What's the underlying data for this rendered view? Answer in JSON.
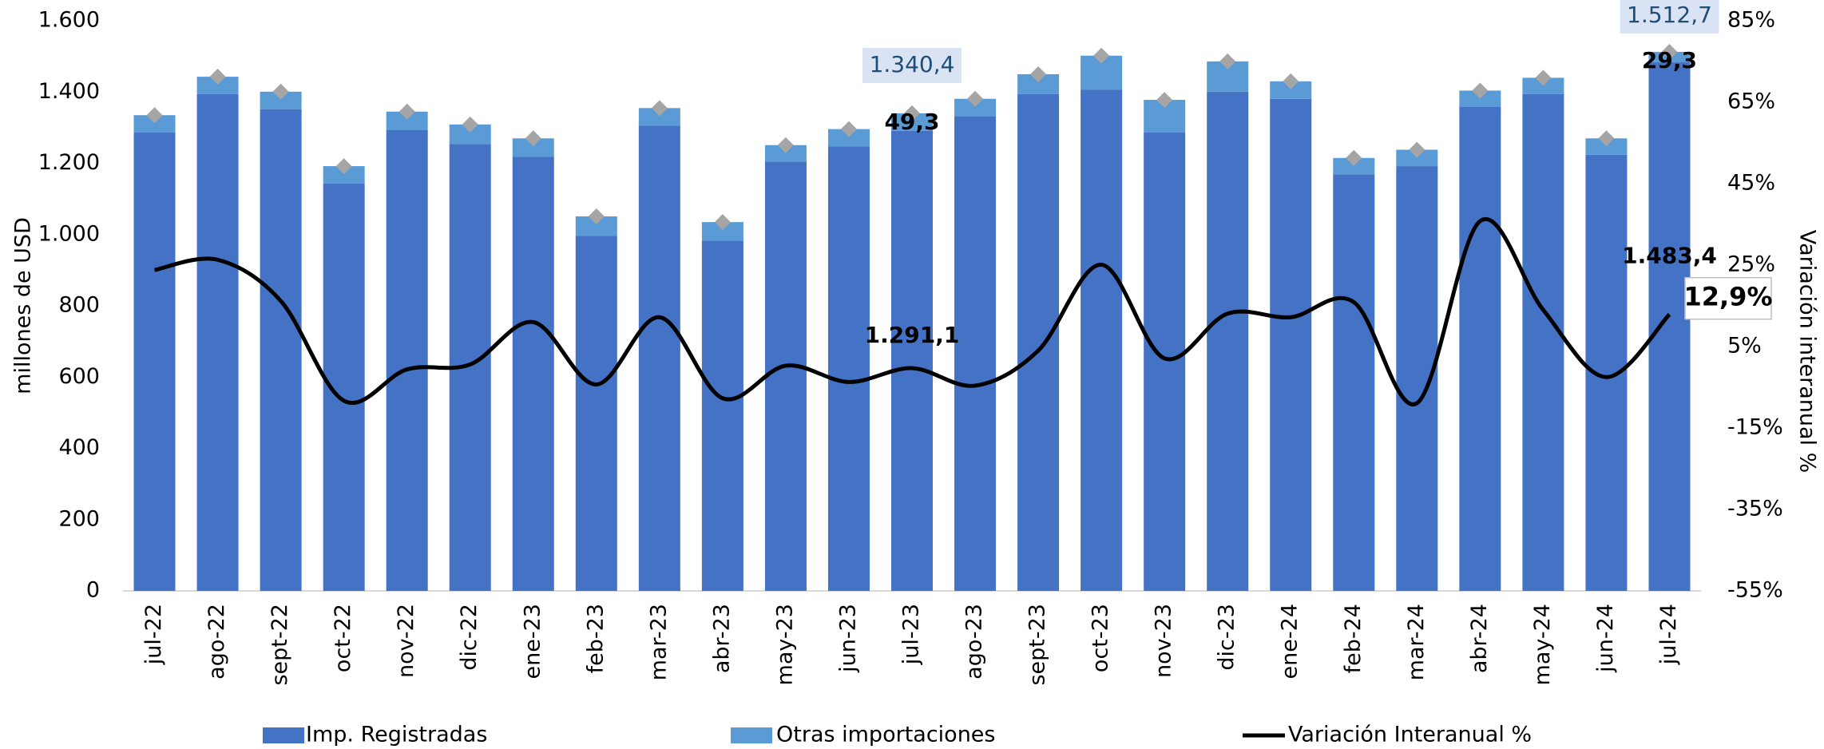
{
  "chart_data": {
    "type": "bar",
    "stacked": true,
    "y_label": "millones de  USD",
    "y2_label": "Variación  interanual %",
    "categories": [
      "jul-22",
      "ago-22",
      "sept-22",
      "oct-22",
      "nov-22",
      "dic-22",
      "ene-23",
      "feb-23",
      "mar-23",
      "abr-23",
      "may-23",
      "jun-23",
      "jul-23",
      "ago-23",
      "sept-23",
      "oct-23",
      "nov-23",
      "dic-23",
      "ene-24",
      "feb-24",
      "mar-24",
      "abr-24",
      "may-24",
      "jun-24",
      "jul-24"
    ],
    "series": [
      {
        "name": "Imp. Registradas",
        "type": "bar",
        "color": "#4472c4",
        "values": [
          1287,
          1394,
          1352,
          1143,
          1293,
          1254,
          1218,
          996,
          1306,
          983,
          1205,
          1247,
          1291.1,
          1332,
          1394,
          1407,
          1287,
          1401,
          1381,
          1169,
          1192,
          1358,
          1394,
          1224,
          1483.4
        ],
        "value_labels": [
          null,
          null,
          null,
          null,
          null,
          null,
          null,
          null,
          null,
          null,
          null,
          null,
          "1.291,1",
          null,
          null,
          null,
          null,
          null,
          null,
          null,
          null,
          null,
          null,
          null,
          "1.483,4"
        ]
      },
      {
        "name": "Otras importaciones",
        "type": "bar",
        "color": "#5b9bd5",
        "values": [
          48,
          49,
          49,
          49,
          52,
          55,
          52,
          55,
          49,
          52,
          46,
          49,
          49.3,
          49,
          56,
          95,
          91,
          85,
          49,
          46,
          46,
          46,
          46,
          46,
          29.3
        ],
        "value_labels": [
          null,
          null,
          null,
          null,
          null,
          null,
          null,
          null,
          null,
          null,
          null,
          null,
          "49,3",
          null,
          null,
          null,
          null,
          null,
          null,
          null,
          null,
          null,
          null,
          null,
          "29,3"
        ]
      },
      {
        "name": "Variación Interanual %",
        "type": "line",
        "axis": "y2",
        "color": "#000000",
        "values": [
          23.8,
          26.3,
          16.2,
          -8.3,
          -0.6,
          0.6,
          11,
          -4.3,
          12.2,
          -7.7,
          0.3,
          -3.7,
          -0.3,
          -4.6,
          4,
          25.1,
          2.1,
          13.1,
          12.2,
          15.9,
          -8.9,
          35.8,
          14,
          -2.5,
          12.9
        ],
        "value_labels": [
          null,
          null,
          null,
          null,
          null,
          null,
          null,
          null,
          null,
          null,
          null,
          null,
          null,
          null,
          null,
          null,
          null,
          null,
          null,
          null,
          null,
          null,
          null,
          null,
          "12,9%"
        ]
      }
    ],
    "total_labels": [
      null,
      null,
      null,
      null,
      null,
      null,
      null,
      null,
      null,
      null,
      null,
      null,
      "1.340,4",
      null,
      null,
      null,
      null,
      null,
      null,
      null,
      null,
      null,
      null,
      null,
      "1.512,7"
    ],
    "total_marker_color": "#a5a5a5",
    "ylim": [
      0,
      1600
    ],
    "yticks": [
      0,
      200,
      400,
      600,
      800,
      {
        "value": 1000,
        "label": "1.000"
      },
      {
        "value": 1200,
        "label": "1.200"
      },
      {
        "value": 1400,
        "label": "1.400"
      },
      {
        "value": 1600,
        "label": "1.600"
      }
    ],
    "y2lim": [
      -55,
      85
    ],
    "y2ticks": [
      {
        "value": -55,
        "label": "-55%"
      },
      {
        "value": -35,
        "label": "-35%"
      },
      {
        "value": -15,
        "label": "-15%"
      },
      {
        "value": 5,
        "label": "5%"
      },
      {
        "value": 25,
        "label": "25%"
      },
      {
        "value": 45,
        "label": "45%"
      },
      {
        "value": 65,
        "label": "65%"
      },
      {
        "value": 85,
        "label": "85%"
      }
    ],
    "legend": "bottom"
  }
}
